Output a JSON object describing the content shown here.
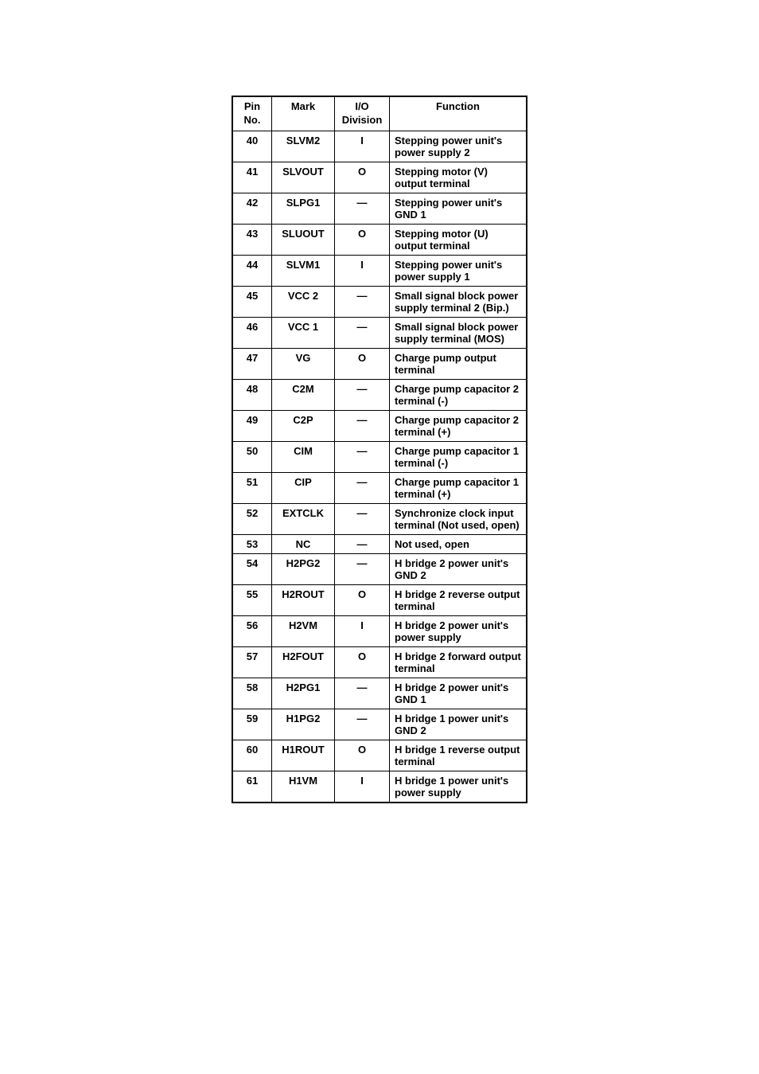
{
  "table": {
    "headers": {
      "pin": "Pin No.",
      "mark": "Mark",
      "io": "I/O Division",
      "function": "Function"
    },
    "rows": [
      {
        "pin": "40",
        "mark": "SLVM2",
        "io": "I",
        "function": "Stepping power unit's power supply 2"
      },
      {
        "pin": "41",
        "mark": "SLVOUT",
        "io": "O",
        "function": "Stepping motor (V) output terminal"
      },
      {
        "pin": "42",
        "mark": "SLPG1",
        "io": "—",
        "function": "Stepping power unit's GND 1"
      },
      {
        "pin": "43",
        "mark": "SLUOUT",
        "io": "O",
        "function": "Stepping motor (U) output terminal"
      },
      {
        "pin": "44",
        "mark": "SLVM1",
        "io": "I",
        "function": "Stepping power unit's power supply 1"
      },
      {
        "pin": "45",
        "mark": "VCC 2",
        "io": "—",
        "function": "Small signal block power supply terminal 2 (Bip.)"
      },
      {
        "pin": "46",
        "mark": "VCC 1",
        "io": "—",
        "function": "Small signal block power supply terminal (MOS)"
      },
      {
        "pin": "47",
        "mark": "VG",
        "io": "O",
        "function": "Charge pump output terminal"
      },
      {
        "pin": "48",
        "mark": "C2M",
        "io": "—",
        "function": "Charge pump capacitor 2 terminal (-)"
      },
      {
        "pin": "49",
        "mark": "C2P",
        "io": "—",
        "function": "Charge pump capacitor 2 terminal (+)"
      },
      {
        "pin": "50",
        "mark": "CIM",
        "io": "—",
        "function": "Charge pump capacitor 1 terminal (-)"
      },
      {
        "pin": "51",
        "mark": "CIP",
        "io": "—",
        "function": "Charge pump capacitor 1 terminal (+)"
      },
      {
        "pin": "52",
        "mark": "EXTCLK",
        "io": "—",
        "function": "Synchronize clock input terminal (Not used, open)"
      },
      {
        "pin": "53",
        "mark": "NC",
        "io": "—",
        "function": "Not used, open"
      },
      {
        "pin": "54",
        "mark": "H2PG2",
        "io": "—",
        "function": "H bridge 2 power unit's GND 2"
      },
      {
        "pin": "55",
        "mark": "H2ROUT",
        "io": "O",
        "function": "H bridge 2 reverse output terminal"
      },
      {
        "pin": "56",
        "mark": "H2VM",
        "io": "I",
        "function": "H bridge 2 power unit's power supply"
      },
      {
        "pin": "57",
        "mark": "H2FOUT",
        "io": "O",
        "function": "H bridge 2 forward output terminal"
      },
      {
        "pin": "58",
        "mark": "H2PG1",
        "io": "—",
        "function": "H bridge 2 power unit's GND 1"
      },
      {
        "pin": "59",
        "mark": "H1PG2",
        "io": "—",
        "function": "H bridge 1 power unit's GND 2"
      },
      {
        "pin": "60",
        "mark": "H1ROUT",
        "io": "O",
        "function": "H bridge 1 reverse output terminal"
      },
      {
        "pin": "61",
        "mark": "H1VM",
        "io": "I",
        "function": "H bridge 1 power unit's power supply"
      }
    ]
  }
}
